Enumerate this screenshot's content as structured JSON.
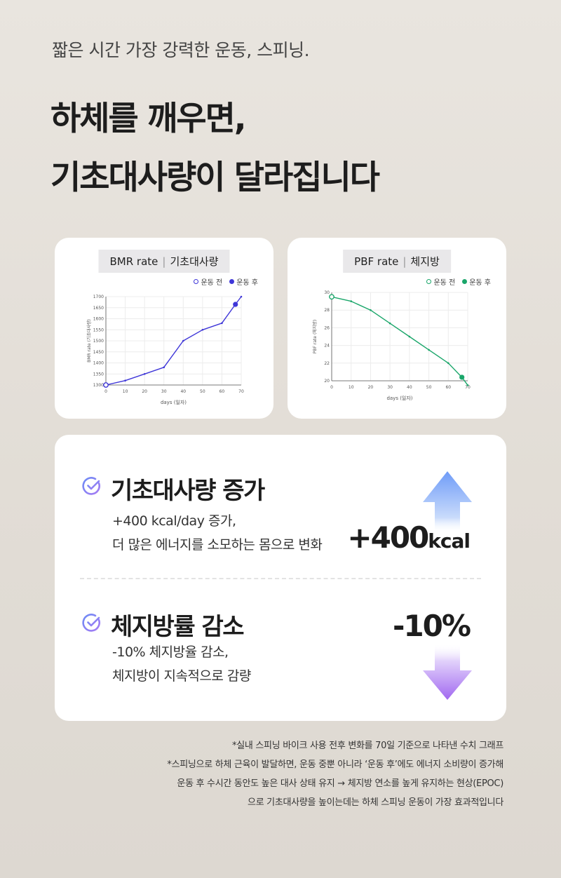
{
  "header": {
    "subtitle": "짧은 시간 가장 강력한 운동, 스피닝.",
    "headline_line1": "하체를 깨우면,",
    "headline_line2": "기초대사량이 달라집니다"
  },
  "colors": {
    "bmr": "#3e36d8",
    "pbf": "#1aa66a",
    "arrow_up": "#7aa4f8",
    "arrow_down": "#a66ff0",
    "check": "#8b78f2"
  },
  "chart_data": [
    {
      "type": "line",
      "title_en": "BMR rate",
      "title_ko": "기초대사량",
      "legend": [
        "운동 전",
        "운동 후"
      ],
      "xlabel": "days (일자)",
      "ylabel": "BMR rate (기초대사량)",
      "xlim": [
        0,
        70
      ],
      "ylim": [
        1300,
        1700
      ],
      "xticks": [
        0,
        10,
        20,
        30,
        40,
        50,
        60,
        70
      ],
      "yticks": [
        1300,
        1350,
        1400,
        1450,
        1500,
        1550,
        1600,
        1650,
        1700
      ],
      "x": [
        0,
        10,
        20,
        30,
        40,
        50,
        60,
        67,
        70
      ],
      "y": [
        1300,
        1320,
        1350,
        1380,
        1500,
        1550,
        1580,
        1665,
        1700
      ],
      "marker_before": {
        "x": 0,
        "y": 1300
      },
      "marker_after": {
        "x": 67,
        "y": 1665
      }
    },
    {
      "type": "line",
      "title_en": "PBF rate",
      "title_ko": "체지방",
      "legend": [
        "운동 전",
        "운동 후"
      ],
      "xlabel": "days (일자)",
      "ylabel": "PBF rate (체지방)",
      "xlim": [
        0,
        70
      ],
      "ylim": [
        20,
        30
      ],
      "xticks": [
        0,
        10,
        20,
        30,
        40,
        50,
        60,
        70
      ],
      "yticks": [
        20,
        22,
        24,
        26,
        28,
        30
      ],
      "x": [
        0,
        10,
        20,
        30,
        40,
        50,
        60,
        67,
        70
      ],
      "y": [
        29.5,
        29,
        28,
        26.5,
        25,
        23.5,
        22,
        20.4,
        19.5
      ],
      "marker_before": {
        "x": 0,
        "y": 29.5
      },
      "marker_after": {
        "x": 67,
        "y": 20.4
      }
    }
  ],
  "sections": {
    "bmr": {
      "title": "기초대사량 증가",
      "desc1": "+400 kcal/day 증가,",
      "desc2": "더 많은 에너지를 소모하는 몸으로 변화",
      "big_number": "+400",
      "big_unit": "kcal",
      "icon": "check-circle-icon",
      "arrow": "arrow-up-icon"
    },
    "pbf": {
      "title": "체지방률 감소",
      "desc1": "-10% 체지방율 감소,",
      "desc2": "체지방이 지속적으로 감량",
      "big_number": "-10%",
      "icon": "check-circle-icon",
      "arrow": "arrow-down-icon"
    }
  },
  "footnotes": [
    "*실내 스피닝 바이크 사용 전후 변화를 70일 기준으로 나타낸 수치 그래프",
    "*스피닝으로 하체 근육이 발달하면, 운동 중뿐 아니라 ‘운동 후’에도 에너지 소비량이 증가해",
    "운동 후 수시간 동안도 높은 대사 상태 유지 → 체지방 연소를 높게 유지하는 현상(EPOC)",
    "으로 기초대사량을 높이는데는 하체 스피닝 운동이 가장 효과적입니다"
  ]
}
